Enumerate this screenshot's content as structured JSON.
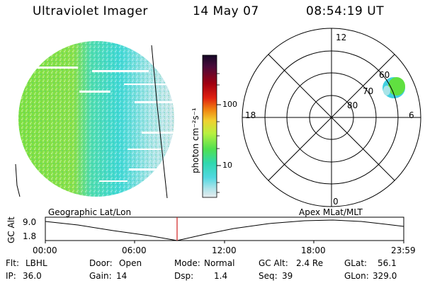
{
  "header": {
    "instrument": "Ultraviolet Imager",
    "date": "14 May 07",
    "time": "08:54:19 UT"
  },
  "colorbar": {
    "label": "photon cm⁻²s⁻¹",
    "ticks": [
      "100",
      "10"
    ],
    "colors": [
      "#1a0b2e",
      "#3a0b3a",
      "#6a0020",
      "#a00010",
      "#d01010",
      "#f03a10",
      "#f07a10",
      "#f0b020",
      "#e8e040",
      "#c0f040",
      "#60e040",
      "#30d8a0",
      "#40d0e0",
      "#a0e0e8",
      "#e0e8ec"
    ]
  },
  "polar": {
    "mlt_labels": {
      "top": "12",
      "left": "18",
      "right": "6",
      "bottom": "0"
    },
    "lat_labels": [
      "60",
      "70",
      "80"
    ]
  },
  "timeline": {
    "left_title": "Geographic Lat/Lon",
    "right_title": "Apex MLat/MLT",
    "axis_label": "GC Alt",
    "y_max": "9.0",
    "y_min": "1.8",
    "x_ticks": [
      "00:00",
      "06:00",
      "12:00",
      "18:00",
      "23:59"
    ],
    "marker_time": "08:54"
  },
  "info": {
    "filter": {
      "label": "Flt:",
      "value": "LBHL"
    },
    "door": {
      "label": "Door:",
      "value": "Open"
    },
    "mode": {
      "label": "Mode:",
      "value": "Normal"
    },
    "gc_alt": {
      "label": "GC Alt:",
      "value": "2.4 Re"
    },
    "glat": {
      "label": "GLat:",
      "value": "56.1"
    },
    "ip": {
      "label": "IP:",
      "value": "36.0"
    },
    "gain": {
      "label": "Gain:",
      "value": "14"
    },
    "dsp": {
      "label": "Dsp:",
      "value": "1.4"
    },
    "seq": {
      "label": "Seq:",
      "value": "39"
    },
    "glon": {
      "label": "GLon:",
      "value": "329.0"
    }
  },
  "colors": {
    "marker": "#d02020",
    "aurora_green": "#60e040",
    "aurora_cyan": "#40d0e0"
  }
}
